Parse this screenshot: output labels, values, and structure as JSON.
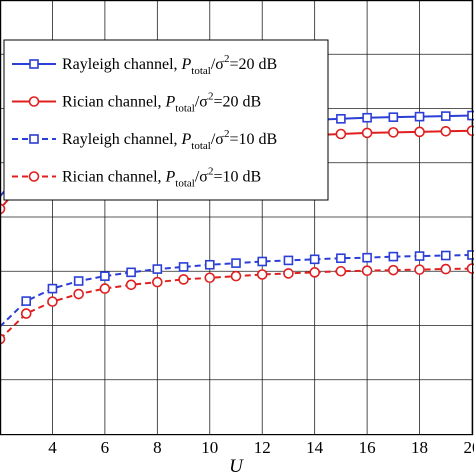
{
  "chart_data": {
    "type": "line",
    "xlabel": "U",
    "ylabel": "",
    "xlim": [
      2,
      20
    ],
    "ylim": [
      0,
      8
    ],
    "x_ticks": [
      4,
      6,
      8,
      10,
      12,
      14,
      16,
      18,
      20
    ],
    "x_tick_labels": [
      "4",
      "6",
      "8",
      "10",
      "12",
      "14",
      "16",
      "18",
      "20"
    ],
    "grid": true,
    "legend_position": "top-left",
    "series": [
      {
        "name": "Rayleigh channel, ",
        "legend_p": "P",
        "legend_sub": "total",
        "legend_sep": "/σ",
        "legend_sup": "2",
        "legend_tail": "=20 dB",
        "color": "#2b3ed6",
        "line_style": "solid",
        "marker": "square",
        "x": [
          2,
          3,
          4,
          5,
          6,
          7,
          8,
          9,
          10,
          11,
          12,
          13,
          14,
          15,
          16,
          17,
          18,
          19,
          20
        ],
        "values": [
          4.38,
          4.95,
          5.2,
          5.36,
          5.47,
          5.54,
          5.61,
          5.66,
          5.69,
          5.72,
          5.75,
          5.77,
          5.79,
          5.81,
          5.83,
          5.84,
          5.85,
          5.86,
          5.87
        ]
      },
      {
        "name": "Rician channel, ",
        "legend_p": "P",
        "legend_sub": "total",
        "legend_sep": "/σ",
        "legend_sup": "2",
        "legend_tail": "=20 dB",
        "color": "#e01f1f",
        "line_style": "solid",
        "marker": "circle",
        "x": [
          2,
          3,
          4,
          5,
          6,
          7,
          8,
          9,
          10,
          11,
          12,
          13,
          14,
          15,
          16,
          17,
          18,
          19,
          20
        ],
        "values": [
          4.15,
          4.7,
          4.93,
          5.09,
          5.18,
          5.26,
          5.32,
          5.37,
          5.41,
          5.44,
          5.47,
          5.49,
          5.51,
          5.53,
          5.55,
          5.56,
          5.57,
          5.58,
          5.59
        ]
      },
      {
        "name": "Rayleigh channel, ",
        "legend_p": "P",
        "legend_sub": "total",
        "legend_sep": "/σ",
        "legend_sup": "2",
        "legend_tail": "=10 dB",
        "color": "#2b3ed6",
        "line_style": "dashed",
        "marker": "square",
        "x": [
          2,
          3,
          4,
          5,
          6,
          7,
          8,
          9,
          10,
          11,
          12,
          13,
          14,
          15,
          16,
          17,
          18,
          19,
          20
        ],
        "values": [
          1.98,
          2.45,
          2.68,
          2.82,
          2.91,
          2.98,
          3.04,
          3.08,
          3.12,
          3.15,
          3.18,
          3.2,
          3.22,
          3.24,
          3.25,
          3.27,
          3.28,
          3.29,
          3.3
        ]
      },
      {
        "name": "Rician channel, ",
        "legend_p": "P",
        "legend_sub": "total",
        "legend_sep": "/σ",
        "legend_sup": "2",
        "legend_tail": "=10 dB",
        "color": "#e01f1f",
        "line_style": "dashed",
        "marker": "circle",
        "x": [
          2,
          3,
          4,
          5,
          6,
          7,
          8,
          9,
          10,
          11,
          12,
          13,
          14,
          15,
          16,
          17,
          18,
          19,
          20
        ],
        "values": [
          1.75,
          2.22,
          2.44,
          2.58,
          2.68,
          2.75,
          2.8,
          2.85,
          2.88,
          2.91,
          2.94,
          2.96,
          2.98,
          3.0,
          3.01,
          3.02,
          3.03,
          3.04,
          3.05
        ]
      }
    ]
  }
}
